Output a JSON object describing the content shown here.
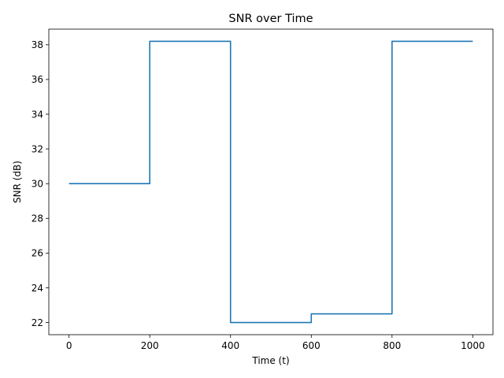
{
  "chart_data": {
    "type": "line",
    "title": "SNR over Time",
    "xlabel": "Time (t)",
    "ylabel": "SNR (dB)",
    "xlim": [
      -50,
      1050
    ],
    "ylim": [
      21.3,
      38.9
    ],
    "xticks": [
      0,
      200,
      400,
      600,
      800,
      1000
    ],
    "yticks": [
      22,
      24,
      26,
      28,
      30,
      32,
      34,
      36,
      38
    ],
    "grid": false,
    "legend": "none",
    "series": [
      {
        "color": "#1f77b4",
        "style": "step",
        "x": [
          0,
          200,
          200,
          400,
          400,
          600,
          600,
          800,
          800,
          1000
        ],
        "y": [
          30.0,
          30.0,
          38.2,
          38.2,
          22.0,
          22.0,
          22.5,
          22.5,
          38.2,
          38.2
        ]
      }
    ]
  }
}
